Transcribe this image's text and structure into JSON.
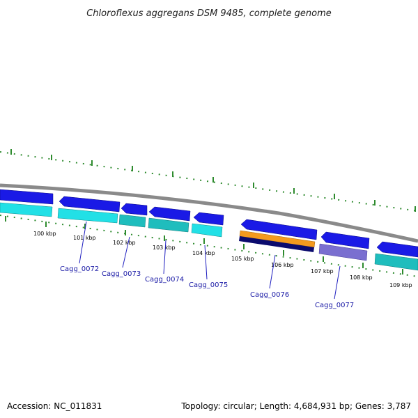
{
  "title": "Chloroflexus aggregans DSM 9485, complete genome",
  "footer": {
    "accession": "Accession: NC_011831",
    "summary": "Topology: circular; Length: 4,684,931 bp; Genes: 3,787"
  },
  "ticks": [
    "100 kbp",
    "101 kbp",
    "102 kbp",
    "103 kbp",
    "104 kbp",
    "105 kbp",
    "106 kbp",
    "107 kbp",
    "108 kbp",
    "109 kbp"
  ],
  "genes": [
    "Cagg_0072",
    "Cagg_0073",
    "Cagg_0074",
    "Cagg_0075",
    "Cagg_0076",
    "Cagg_0077"
  ],
  "colors": {
    "backbone": "#8a8a8a",
    "cds": "#1a1ae6",
    "cds_cyan": "#22e0e6",
    "cds_teal": "#1fbdbd",
    "orange": "#f39a1e",
    "navy": "#0b0b6e",
    "purple": "#7a6fd0",
    "tick": "#2e8b2e",
    "label": "#1a1aa6"
  }
}
